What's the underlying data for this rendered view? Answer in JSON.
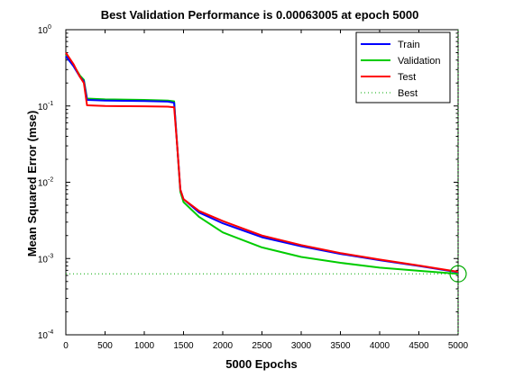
{
  "chart_data": {
    "type": "line",
    "title": "Best Validation Performance is 0.00063005 at epoch 5000",
    "xlabel": "5000 Epochs",
    "ylabel": "Mean Squared Error  (mse)",
    "xlim": [
      0,
      5000
    ],
    "ylim": [
      0.0001,
      1
    ],
    "yscale": "log",
    "grid": false,
    "legend_position": "top-right",
    "x_ticks": [
      {
        "value": 0,
        "label": "0"
      },
      {
        "value": 500,
        "label": "500"
      },
      {
        "value": 1000,
        "label": "1000"
      },
      {
        "value": 1500,
        "label": "1500"
      },
      {
        "value": 2000,
        "label": "2000"
      },
      {
        "value": 2500,
        "label": "2500"
      },
      {
        "value": 3000,
        "label": "3000"
      },
      {
        "value": 3500,
        "label": "3500"
      },
      {
        "value": 4000,
        "label": "4000"
      },
      {
        "value": 4500,
        "label": "4500"
      },
      {
        "value": 5000,
        "label": "5000"
      }
    ],
    "y_ticks": [
      {
        "value": 1,
        "base": "10",
        "exp": "0"
      },
      {
        "value": 0.1,
        "base": "10",
        "exp": "-1"
      },
      {
        "value": 0.01,
        "base": "10",
        "exp": "-2"
      },
      {
        "value": 0.001,
        "base": "10",
        "exp": "-3"
      },
      {
        "value": 0.0001,
        "base": "10",
        "exp": "-4"
      }
    ],
    "series": [
      {
        "name": "Train",
        "color": "#0000ff",
        "points": [
          [
            0,
            0.45
          ],
          [
            100,
            0.33
          ],
          [
            180,
            0.24
          ],
          [
            230,
            0.21
          ],
          [
            270,
            0.12
          ],
          [
            500,
            0.118
          ],
          [
            1000,
            0.116
          ],
          [
            1300,
            0.114
          ],
          [
            1380,
            0.11
          ],
          [
            1420,
            0.03
          ],
          [
            1460,
            0.008
          ],
          [
            1500,
            0.006
          ],
          [
            1700,
            0.004
          ],
          [
            2000,
            0.0029
          ],
          [
            2500,
            0.0019
          ],
          [
            3000,
            0.00145
          ],
          [
            3500,
            0.00115
          ],
          [
            4000,
            0.00095
          ],
          [
            4500,
            0.0008
          ],
          [
            5000,
            0.00066
          ]
        ]
      },
      {
        "name": "Validation",
        "color": "#00cc00",
        "points": [
          [
            0,
            0.47
          ],
          [
            100,
            0.34
          ],
          [
            180,
            0.25
          ],
          [
            230,
            0.22
          ],
          [
            270,
            0.125
          ],
          [
            500,
            0.122
          ],
          [
            1000,
            0.12
          ],
          [
            1300,
            0.118
          ],
          [
            1380,
            0.115
          ],
          [
            1420,
            0.03
          ],
          [
            1460,
            0.0075
          ],
          [
            1500,
            0.0055
          ],
          [
            1700,
            0.0035
          ],
          [
            2000,
            0.0022
          ],
          [
            2500,
            0.0014
          ],
          [
            3000,
            0.00105
          ],
          [
            3500,
            0.00088
          ],
          [
            4000,
            0.00076
          ],
          [
            4500,
            0.00069
          ],
          [
            5000,
            0.00063005
          ]
        ]
      },
      {
        "name": "Test",
        "color": "#ff0000",
        "points": [
          [
            0,
            0.5
          ],
          [
            100,
            0.35
          ],
          [
            180,
            0.24
          ],
          [
            230,
            0.2
          ],
          [
            270,
            0.102
          ],
          [
            500,
            0.1
          ],
          [
            1000,
            0.099
          ],
          [
            1300,
            0.098
          ],
          [
            1380,
            0.096
          ],
          [
            1420,
            0.03
          ],
          [
            1460,
            0.008
          ],
          [
            1500,
            0.006
          ],
          [
            1700,
            0.0042
          ],
          [
            2000,
            0.0031
          ],
          [
            2500,
            0.002
          ],
          [
            3000,
            0.0015
          ],
          [
            3500,
            0.00118
          ],
          [
            4000,
            0.00097
          ],
          [
            4500,
            0.00081
          ],
          [
            5000,
            0.00067
          ]
        ]
      }
    ],
    "best": {
      "name": "Best",
      "epoch": 5000,
      "value": 0.00063005,
      "color": "#00aa00"
    }
  }
}
